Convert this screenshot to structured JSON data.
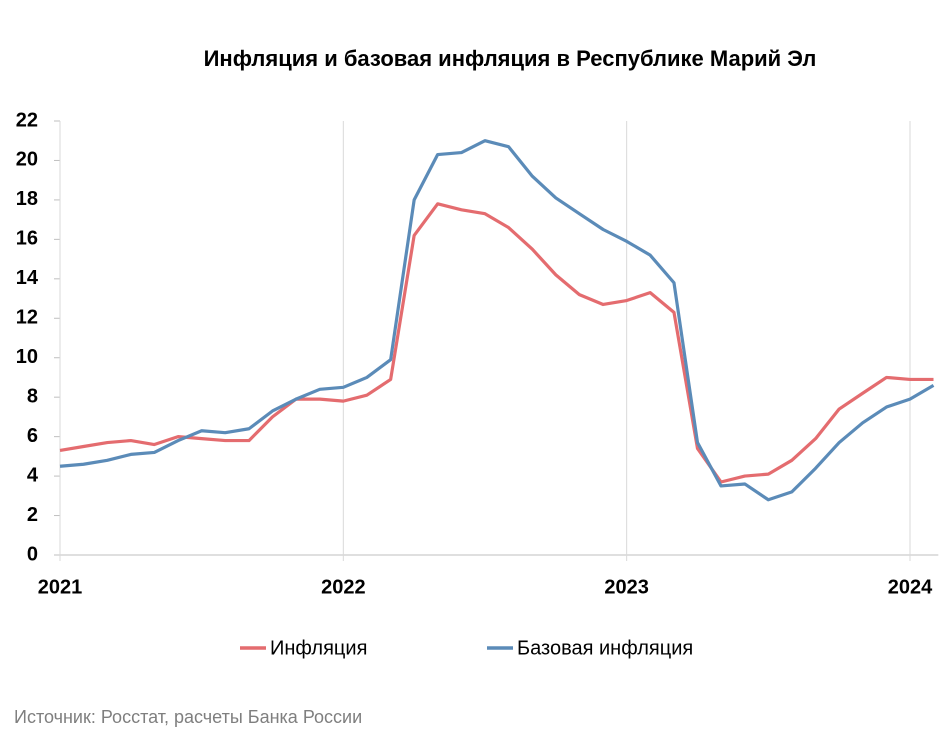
{
  "chart_data": {
    "type": "line",
    "title": "Инфляция и базовая инфляция в Республике Марий Эл",
    "source": "Источник: Росстат, расчеты Банка России",
    "x": [
      2021,
      2021.083,
      2021.167,
      2021.25,
      2021.333,
      2021.417,
      2021.5,
      2021.583,
      2021.667,
      2021.75,
      2021.833,
      2021.917,
      2022,
      2022.083,
      2022.167,
      2022.25,
      2022.333,
      2022.417,
      2022.5,
      2022.583,
      2022.667,
      2022.75,
      2022.833,
      2022.917,
      2023,
      2023.083,
      2023.167,
      2023.25,
      2023.333,
      2023.417,
      2023.5,
      2023.583,
      2023.667,
      2023.75,
      2023.833,
      2023.917,
      2024,
      2024.083
    ],
    "series": [
      {
        "name": "Инфляция",
        "color": "#e46c6f",
        "values": [
          5.3,
          5.5,
          5.7,
          5.8,
          5.6,
          6.0,
          5.9,
          5.8,
          5.8,
          7.0,
          7.9,
          7.9,
          7.8,
          8.1,
          8.9,
          16.2,
          17.8,
          17.5,
          17.3,
          16.6,
          15.5,
          14.2,
          13.2,
          12.7,
          12.9,
          13.3,
          12.3,
          5.4,
          3.7,
          4.0,
          4.1,
          4.8,
          5.9,
          7.4,
          8.2,
          9.0,
          8.9,
          8.9
        ]
      },
      {
        "name": "Базовая инфляция",
        "color": "#5b8bb8",
        "values": [
          4.5,
          4.6,
          4.8,
          5.1,
          5.2,
          5.8,
          6.3,
          6.2,
          6.4,
          7.3,
          7.9,
          8.4,
          8.5,
          9.0,
          9.9,
          18.0,
          20.3,
          20.4,
          21.0,
          20.7,
          19.2,
          18.1,
          17.3,
          16.5,
          15.9,
          15.2,
          13.8,
          5.7,
          3.5,
          3.6,
          2.8,
          3.2,
          4.4,
          5.7,
          6.7,
          7.5,
          7.9,
          8.6
        ]
      }
    ],
    "xlim": [
      2021,
      2024.1
    ],
    "xticks": [
      2021,
      2022,
      2023,
      2024
    ],
    "ylim": [
      0,
      22
    ],
    "yticks": [
      0,
      2,
      4,
      6,
      8,
      10,
      12,
      14,
      16,
      18,
      20,
      22
    ],
    "grid": "x"
  }
}
